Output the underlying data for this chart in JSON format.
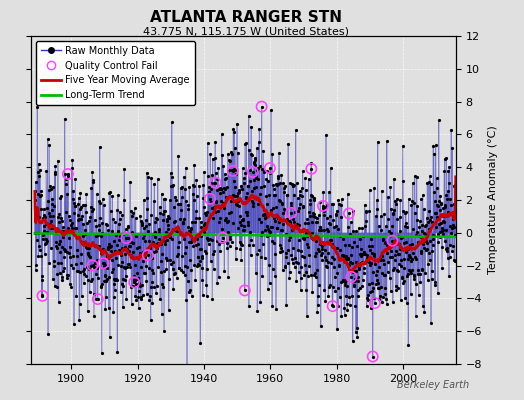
{
  "title": "ATLANTA RANGER STN",
  "subtitle": "43.775 N, 115.175 W (United States)",
  "ylabel": "Temperature Anomaly (°C)",
  "credit": "Berkeley Earth",
  "ylim": [
    -8,
    12
  ],
  "yticks": [
    -8,
    -6,
    -4,
    -2,
    0,
    2,
    4,
    6,
    8,
    10,
    12
  ],
  "xlim": [
    1888,
    2016
  ],
  "xticks": [
    1900,
    1920,
    1940,
    1960,
    1980,
    2000
  ],
  "bg_color": "#e0e0e0",
  "raw_line_color": "#3333bb",
  "raw_marker_color": "#000000",
  "qc_fail_color": "#ff44ff",
  "moving_avg_color": "#cc0000",
  "trend_color": "#00bb00",
  "seed": 12,
  "start_year": 1889,
  "end_year": 2015
}
